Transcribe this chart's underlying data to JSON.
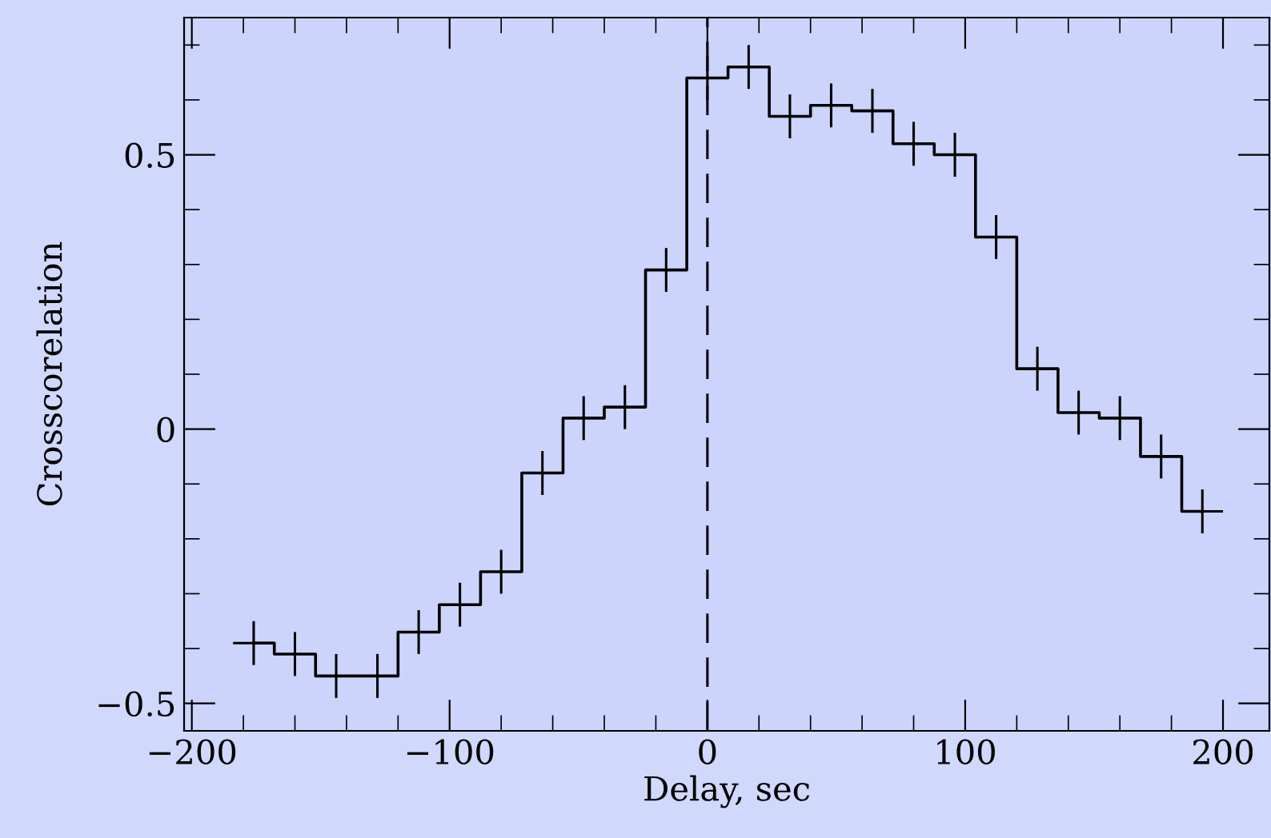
{
  "chart_data": {
    "type": "step",
    "xlabel": "Delay, sec",
    "ylabel": "Crosscorelation",
    "x": [
      -176,
      -160,
      -144,
      -128,
      -112,
      -96,
      -80,
      -64,
      -48,
      -32,
      -16,
      0,
      16,
      32,
      48,
      64,
      80,
      96,
      112,
      128,
      144,
      160,
      176,
      192
    ],
    "values": [
      -0.39,
      -0.41,
      -0.45,
      -0.45,
      -0.37,
      -0.32,
      -0.26,
      -0.08,
      0.02,
      0.04,
      0.29,
      0.64,
      0.66,
      0.57,
      0.59,
      0.58,
      0.52,
      0.5,
      0.35,
      0.11,
      0.03,
      0.02,
      -0.05,
      -0.15
    ],
    "errors": [
      0.04,
      0.04,
      0.04,
      0.04,
      0.04,
      0.04,
      0.04,
      0.04,
      0.04,
      0.04,
      0.04,
      0.04,
      0.04,
      0.04,
      0.04,
      0.04,
      0.04,
      0.04,
      0.04,
      0.04,
      0.04,
      0.04,
      0.04,
      0.04
    ],
    "xerrors": [
      8,
      null,
      null,
      null,
      null,
      null,
      null,
      null,
      null,
      null,
      null,
      null,
      null,
      null,
      null,
      null,
      null,
      null,
      null,
      null,
      null,
      null,
      null,
      8
    ],
    "color": "#000000",
    "xlim": [
      -203,
      218
    ],
    "ylim": [
      -0.55,
      0.75
    ],
    "xticks": [
      {
        "value": -200,
        "label": "−200"
      },
      {
        "value": -100,
        "label": "−100"
      },
      0,
      100,
      200
    ],
    "yticks": [
      {
        "value": -0.5,
        "label": "−0.5"
      },
      0,
      0.5
    ],
    "ref_lines": [
      {
        "axis": "x",
        "value": 0,
        "line_style": "dashed",
        "color": "#000000"
      }
    ],
    "grid": false,
    "marker": "none"
  }
}
